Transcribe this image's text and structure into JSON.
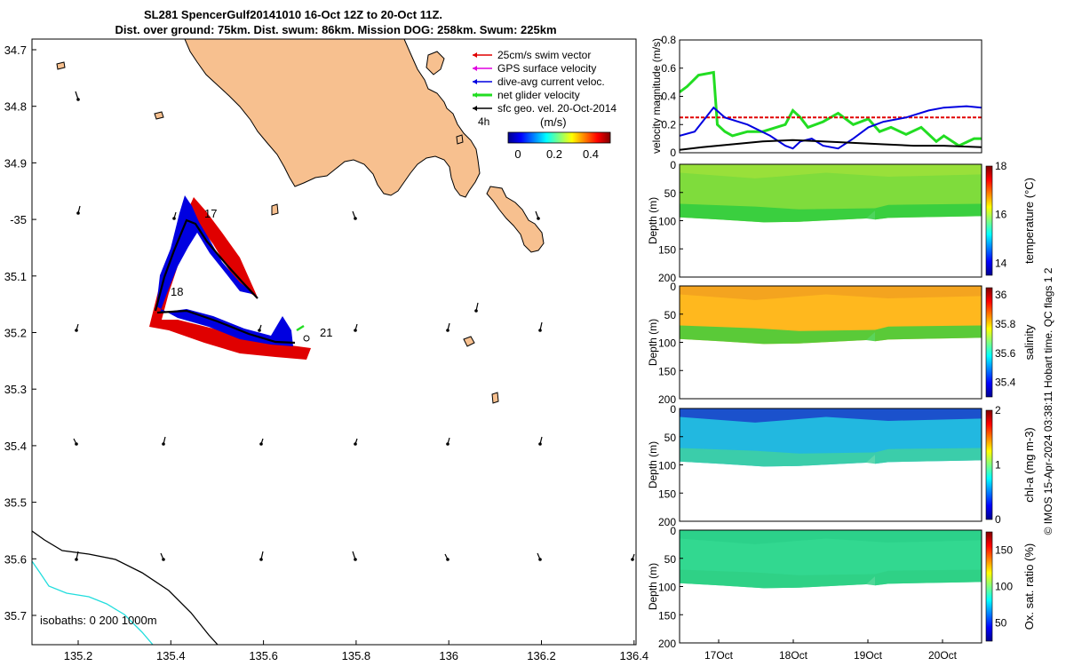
{
  "header": {
    "title_line1": "SL281 SpencerGulf20141010 16-Oct 12Z to 20-Oct 11Z.",
    "title_line2": "Dist. over ground: 75km. Dist. swum: 86km. Mission DOG: 258km. Swum: 225km"
  },
  "map": {
    "lat_ticks": [
      "34.7",
      "34.8",
      "34.9",
      "-35",
      "35.1",
      "35.2",
      "35.3",
      "35.4",
      "35.5",
      "35.6",
      "35.7"
    ],
    "lon_ticks": [
      "135.2",
      "135.4",
      "135.6",
      "135.8",
      "136",
      "136.2",
      "136.4"
    ],
    "legend": [
      {
        "label": "25cm/s swim vector",
        "color": "#e00000"
      },
      {
        "label": "GPS surface velocity",
        "color": "#e000e0"
      },
      {
        "label": "dive-avg current veloc.",
        "color": "#0000e0"
      },
      {
        "label": "net glider velocity",
        "color": "#22dd22"
      },
      {
        "label": "sfc geo. vel. 20-Oct-2014",
        "color": "#000000"
      }
    ],
    "colorbar_label_left": "4h",
    "colorbar_unit": "(m/s)",
    "colorbar_ticks": [
      "0",
      "0.2",
      "0.4"
    ],
    "day_labels": [
      "17",
      "18",
      "21"
    ],
    "isobath_label": "isobaths: 0   200   1000m",
    "colors": {
      "land": "#f7c08f",
      "swim": "#e00000",
      "current": "#0000e0",
      "net": "#22dd22",
      "iso0": "#000000",
      "iso200": "#22dddd"
    }
  },
  "chart_data": [
    {
      "type": "line",
      "ylabel": "velocity magnitude (m/s)",
      "yticks": [
        "0",
        "0.2",
        "0.4",
        "0.6",
        "0.8"
      ],
      "ylim": [
        0,
        0.8
      ],
      "xlim_days": [
        16.5,
        20.5
      ],
      "series": [
        {
          "color": "#22dd22",
          "values": [
            [
              16.5,
              0.43
            ],
            [
              16.6,
              0.47
            ],
            [
              16.75,
              0.55
            ],
            [
              16.95,
              0.57
            ],
            [
              17.0,
              0.2
            ],
            [
              17.1,
              0.15
            ],
            [
              17.2,
              0.12
            ],
            [
              17.4,
              0.15
            ],
            [
              17.6,
              0.15
            ],
            [
              17.9,
              0.2
            ],
            [
              18.0,
              0.3
            ],
            [
              18.1,
              0.25
            ],
            [
              18.2,
              0.18
            ],
            [
              18.4,
              0.22
            ],
            [
              18.6,
              0.28
            ],
            [
              18.8,
              0.2
            ],
            [
              19.0,
              0.24
            ],
            [
              19.15,
              0.15
            ],
            [
              19.3,
              0.18
            ],
            [
              19.5,
              0.13
            ],
            [
              19.7,
              0.18
            ],
            [
              19.9,
              0.08
            ],
            [
              20.0,
              0.12
            ],
            [
              20.2,
              0.05
            ],
            [
              20.4,
              0.1
            ],
            [
              20.5,
              0.1
            ]
          ]
        },
        {
          "color": "#e00000",
          "values": [
            [
              16.5,
              0.25
            ],
            [
              20.5,
              0.25
            ]
          ]
        },
        {
          "color": "#0000e0",
          "values": [
            [
              16.5,
              0.12
            ],
            [
              16.7,
              0.15
            ],
            [
              16.95,
              0.32
            ],
            [
              17.1,
              0.25
            ],
            [
              17.4,
              0.2
            ],
            [
              17.7,
              0.12
            ],
            [
              17.9,
              0.05
            ],
            [
              18.0,
              0.03
            ],
            [
              18.1,
              0.08
            ],
            [
              18.25,
              0.1
            ],
            [
              18.4,
              0.05
            ],
            [
              18.6,
              0.03
            ],
            [
              18.8,
              0.1
            ],
            [
              19.0,
              0.18
            ],
            [
              19.2,
              0.22
            ],
            [
              19.5,
              0.25
            ],
            [
              19.8,
              0.3
            ],
            [
              20.0,
              0.32
            ],
            [
              20.3,
              0.33
            ],
            [
              20.5,
              0.32
            ]
          ]
        },
        {
          "color": "#000000",
          "values": [
            [
              16.5,
              0.02
            ],
            [
              16.8,
              0.04
            ],
            [
              17.2,
              0.06
            ],
            [
              17.6,
              0.08
            ],
            [
              18.0,
              0.09
            ],
            [
              18.4,
              0.08
            ],
            [
              18.8,
              0.07
            ],
            [
              19.2,
              0.06
            ],
            [
              19.6,
              0.05
            ],
            [
              20.0,
              0.05
            ],
            [
              20.5,
              0.04
            ]
          ]
        }
      ]
    },
    {
      "type": "heatmap",
      "ylabel": "Depth (m)",
      "yticks": [
        "0",
        "50",
        "100",
        "150",
        "200"
      ],
      "ylim": [
        0,
        200
      ],
      "cbar_label": "temperature (°C)",
      "cbar_ticks": [
        "14",
        "16",
        "18"
      ],
      "cbar_range": [
        13.5,
        18
      ]
    },
    {
      "type": "heatmap",
      "ylabel": "Depth (m)",
      "yticks": [
        "0",
        "50",
        "100",
        "150",
        "200"
      ],
      "ylim": [
        0,
        200
      ],
      "cbar_label": "salinity",
      "cbar_ticks": [
        "35.4",
        "35.6",
        "35.8",
        "36"
      ],
      "cbar_range": [
        35.3,
        36.05
      ]
    },
    {
      "type": "heatmap",
      "ylabel": "Depth (m)",
      "yticks": [
        "0",
        "50",
        "100",
        "150",
        "200"
      ],
      "ylim": [
        0,
        200
      ],
      "cbar_label": "chl-a (mg m-3)",
      "cbar_ticks": [
        "0",
        "1",
        "2"
      ],
      "cbar_range": [
        0,
        2
      ]
    },
    {
      "type": "heatmap",
      "ylabel": "Depth (m)",
      "yticks": [
        "0",
        "50",
        "100",
        "150",
        "200"
      ],
      "ylim": [
        0,
        200
      ],
      "xticks": [
        "17Oct",
        "18Oct",
        "19Oct",
        "20Oct"
      ],
      "cbar_label": "Ox. sat. ratio (%)",
      "cbar_ticks": [
        "50",
        "100",
        "150"
      ],
      "cbar_range": [
        25,
        175
      ]
    }
  ],
  "footer": {
    "side_note": "© IMOS 15-Apr-2024 03:38:11 Hobart time. QC flags 1  2"
  }
}
